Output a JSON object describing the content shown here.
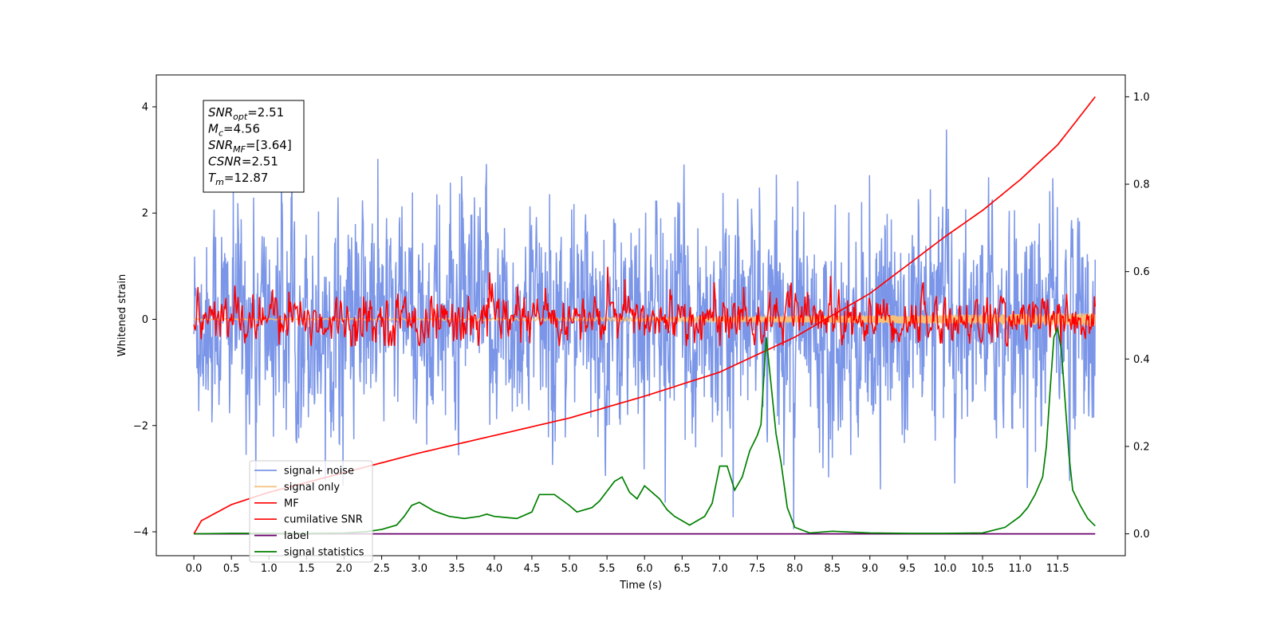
{
  "chart_data": {
    "type": "line",
    "xlabel": "Time (s)",
    "ylabel": "Whitened strain",
    "xlim": [
      -0.5,
      12.4
    ],
    "ylim": [
      -4.45,
      4.6
    ],
    "y2lim": [
      -0.05,
      1.05
    ],
    "x_ticks": [
      "0.0",
      "0.5",
      "1.0",
      "1.5",
      "2.0",
      "2.5",
      "3.0",
      "3.5",
      "4.0",
      "4.5",
      "5.0",
      "5.5",
      "6.0",
      "6.5",
      "7.0",
      "7.5",
      "8.0",
      "8.5",
      "9.0",
      "9.5",
      "10.0",
      "10.5",
      "11.0",
      "11.5"
    ],
    "y_ticks": [
      "−4",
      "−2",
      "0",
      "2",
      "4"
    ],
    "y2_ticks": [
      "0.0",
      "0.2",
      "0.4",
      "0.6",
      "0.8",
      "1.0"
    ],
    "annotation": {
      "lines": [
        {
          "sym": "SNR",
          "sub": "opt",
          "val": "=2.51"
        },
        {
          "sym": "M",
          "sub": "c",
          "val": "=4.56"
        },
        {
          "sym": "SNR",
          "sub": "MF",
          "val": "=[3.64]"
        },
        {
          "sym": "CSNR",
          "sub": "",
          "val": "=2.51"
        },
        {
          "sym": "T",
          "sub": "m",
          "val": "=12.87"
        }
      ]
    },
    "legend": {
      "placement": "lower-left",
      "entries": [
        {
          "label": "signal+ noise",
          "color": "#7b96e8"
        },
        {
          "label": "signal only",
          "color": "#f5c07a"
        },
        {
          "label": "MF",
          "color": "#ff0000"
        },
        {
          "label": "cumilative SNR",
          "color": "#ff0000"
        },
        {
          "label": "label",
          "color": "#6a006a"
        },
        {
          "label": "signal statistics",
          "color": "#008000"
        }
      ]
    },
    "series": [
      {
        "name": "signal+ noise",
        "axis": "left",
        "description": "whitened noisy strain, roughly ±3 around 0 with peaks to ±4",
        "x_range": [
          0.0,
          12.0
        ],
        "color": "#7b96e8"
      },
      {
        "name": "signal only",
        "axis": "left",
        "x_range": [
          0.0,
          12.0
        ],
        "color": "#f5c07a",
        "amplitude_start": 0.01,
        "amplitude_end": 0.12
      },
      {
        "name": "MF",
        "axis": "left",
        "x_range": [
          0.0,
          12.0
        ],
        "color": "#ff0000"
      },
      {
        "name": "cumilative SNR",
        "axis": "right",
        "color": "#ff0000",
        "x": [
          0.0,
          0.1,
          0.5,
          1.0,
          2.0,
          3.0,
          4.0,
          5.0,
          6.0,
          7.0,
          8.0,
          9.0,
          10.0,
          10.5,
          11.0,
          11.5,
          12.0
        ],
        "y": [
          0.0,
          0.03,
          0.067,
          0.095,
          0.14,
          0.185,
          0.225,
          0.265,
          0.315,
          0.37,
          0.45,
          0.55,
          0.68,
          0.74,
          0.81,
          0.89,
          1.0
        ]
      },
      {
        "name": "label",
        "axis": "right",
        "color": "#6a006a",
        "x": [
          0.0,
          12.0
        ],
        "y": [
          0.0,
          0.0
        ]
      },
      {
        "name": "signal statistics",
        "axis": "right",
        "color": "#008000",
        "x": [
          0.0,
          0.5,
          1.0,
          1.5,
          2.0,
          2.3,
          2.5,
          2.7,
          2.8,
          2.9,
          3.0,
          3.2,
          3.4,
          3.6,
          3.8,
          3.9,
          4.0,
          4.3,
          4.5,
          4.6,
          4.8,
          5.0,
          5.1,
          5.3,
          5.4,
          5.6,
          5.7,
          5.8,
          5.9,
          6.0,
          6.1,
          6.2,
          6.3,
          6.4,
          6.5,
          6.6,
          6.8,
          6.9,
          7.0,
          7.1,
          7.2,
          7.3,
          7.4,
          7.5,
          7.55,
          7.62,
          7.68,
          7.75,
          7.82,
          7.9,
          8.0,
          8.2,
          8.5,
          9.0,
          9.5,
          10.0,
          10.5,
          10.8,
          11.0,
          11.1,
          11.2,
          11.3,
          11.35,
          11.4,
          11.45,
          11.5,
          11.55,
          11.6,
          11.65,
          11.7,
          11.8,
          11.9,
          12.0
        ],
        "y": [
          0.0,
          0.001,
          0.001,
          0.001,
          0.002,
          0.005,
          0.01,
          0.02,
          0.04,
          0.065,
          0.072,
          0.052,
          0.04,
          0.035,
          0.04,
          0.045,
          0.04,
          0.035,
          0.05,
          0.09,
          0.09,
          0.065,
          0.05,
          0.06,
          0.075,
          0.12,
          0.13,
          0.095,
          0.08,
          0.11,
          0.095,
          0.08,
          0.055,
          0.04,
          0.03,
          0.02,
          0.04,
          0.07,
          0.155,
          0.155,
          0.1,
          0.13,
          0.19,
          0.225,
          0.25,
          0.45,
          0.35,
          0.23,
          0.16,
          0.06,
          0.015,
          0.002,
          0.006,
          0.002,
          0.001,
          0.001,
          0.002,
          0.015,
          0.04,
          0.06,
          0.09,
          0.13,
          0.2,
          0.33,
          0.45,
          0.47,
          0.42,
          0.3,
          0.18,
          0.1,
          0.065,
          0.035,
          0.018
        ]
      }
    ]
  }
}
